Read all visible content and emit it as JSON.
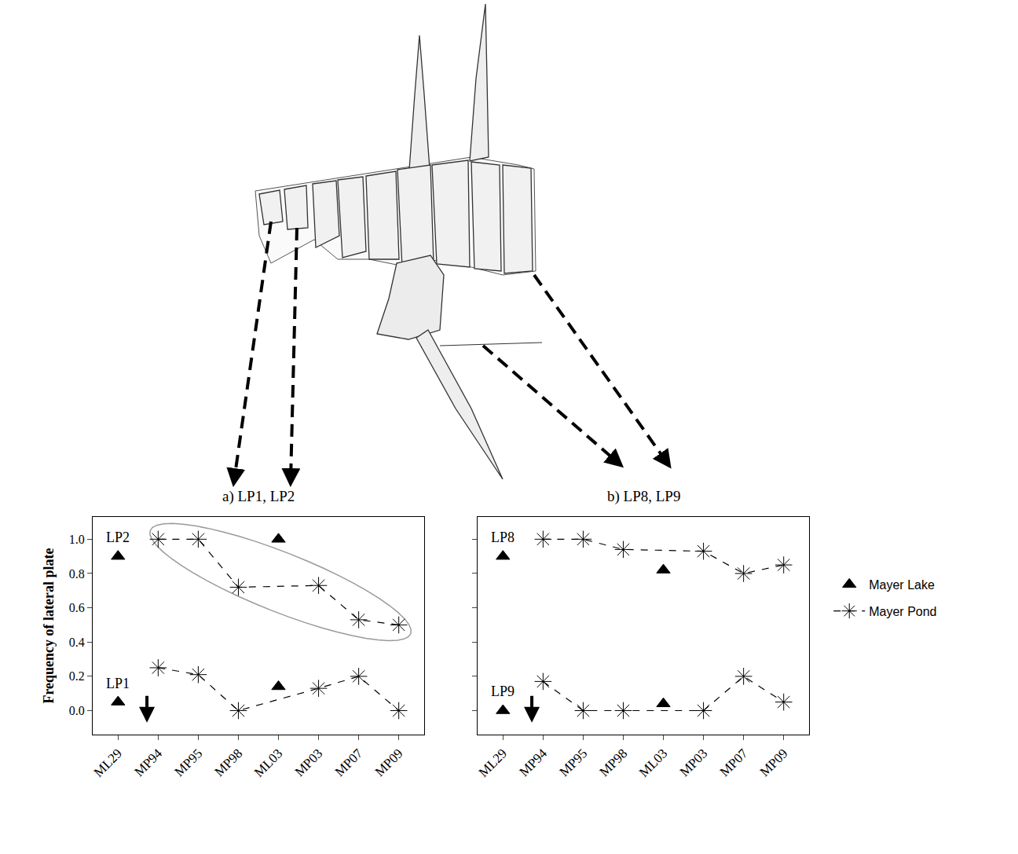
{
  "chart_data": [
    {
      "type": "line",
      "title": "a) LP1, LP2",
      "ylabel": "Frequency of lateral plate",
      "categories": [
        "ML29",
        "MP94",
        "MP95",
        "MP98",
        "ML03",
        "MP03",
        "MP07",
        "MP09"
      ],
      "ylim": [
        -0.14,
        1.13
      ],
      "yticks": [
        {
          "value": 0,
          "label": "0.0"
        },
        {
          "value": 0.2,
          "label": "0.2"
        },
        {
          "value": 0.4,
          "label": "0.4"
        },
        {
          "value": 0.6,
          "label": "0.6"
        },
        {
          "value": 0.8,
          "label": "0.8"
        },
        {
          "value": 1,
          "label": "1.0"
        }
      ],
      "grid": false,
      "legend": "right",
      "series": [
        {
          "name": "Mayer Lake",
          "group": "LP2",
          "color": "#000000",
          "marker": "triangle",
          "values": [
            0.9,
            null,
            null,
            null,
            1.0,
            null,
            null,
            null
          ]
        },
        {
          "name": "Mayer Pond",
          "group": "LP2",
          "color": "#000000",
          "marker": "asterisk",
          "line_style": "dash",
          "values": [
            null,
            1.0,
            1.0,
            0.72,
            null,
            0.73,
            0.53,
            0.5
          ]
        },
        {
          "name": "Mayer Lake",
          "group": "LP1",
          "color": "#000000",
          "marker": "triangle",
          "values": [
            0.05,
            null,
            null,
            null,
            0.14,
            null,
            null,
            null
          ]
        },
        {
          "name": "Mayer Pond",
          "group": "LP1",
          "color": "#000000",
          "marker": "asterisk",
          "line_style": "dash",
          "values": [
            null,
            0.25,
            0.21,
            0.0,
            null,
            0.13,
            0.2,
            0.0
          ]
        }
      ]
    },
    {
      "type": "line",
      "title": "b) LP8, LP9",
      "categories": [
        "ML29",
        "MP94",
        "MP95",
        "MP98",
        "ML03",
        "MP03",
        "MP07",
        "MP09"
      ],
      "ylim": [
        -0.14,
        1.13
      ],
      "yticks": [
        {
          "value": 0,
          "label": "0.0"
        },
        {
          "value": 0.2,
          "label": "0.2"
        },
        {
          "value": 0.4,
          "label": "0.4"
        },
        {
          "value": 0.6,
          "label": "0.6"
        },
        {
          "value": 0.8,
          "label": "0.8"
        },
        {
          "value": 1,
          "label": "1.0"
        }
      ],
      "grid": false,
      "tick_labels": "x",
      "series": [
        {
          "name": "Mayer Lake",
          "group": "LP8",
          "color": "#000000",
          "marker": "triangle",
          "values": [
            0.9,
            null,
            null,
            null,
            0.82,
            null,
            null,
            null
          ]
        },
        {
          "name": "Mayer Pond",
          "group": "LP8",
          "color": "#000000",
          "marker": "asterisk",
          "line_style": "dash",
          "values": [
            null,
            1.0,
            1.0,
            0.94,
            null,
            0.93,
            0.8,
            0.85
          ]
        },
        {
          "name": "Mayer Lake",
          "group": "LP9",
          "color": "#000000",
          "marker": "triangle",
          "values": [
            0.0,
            null,
            null,
            null,
            0.04,
            null,
            null,
            null
          ]
        },
        {
          "name": "Mayer Pond",
          "group": "LP9",
          "color": "#000000",
          "marker": "asterisk",
          "line_style": "dash",
          "values": [
            null,
            0.17,
            0.0,
            0.0,
            null,
            0.0,
            0.2,
            0.05
          ]
        }
      ]
    }
  ]
}
